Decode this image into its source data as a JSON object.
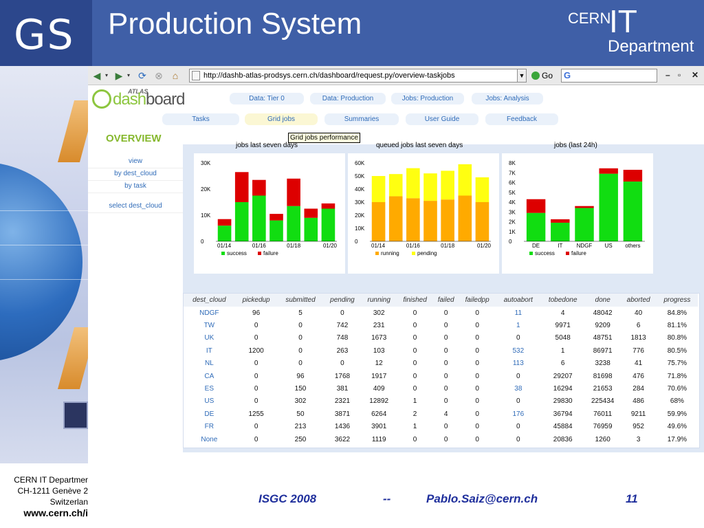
{
  "slide": {
    "title": "Production System",
    "gs_logo": "GS",
    "cern": "CERN",
    "it": "IT",
    "department": "Department",
    "footer_left": [
      "CERN IT Departmer",
      "CH-1211 Genève 2",
      "Switzerlan"
    ],
    "footer_url": "www.cern.ch/i",
    "footer_event": "ISGC 2008",
    "footer_sep": "--",
    "footer_email": "Pablo.Saiz@cern.ch",
    "page_number": "11"
  },
  "browser": {
    "url": "http://dashb-atlas-prodsys.cern.ch/dashboard/request.py/overview-taskjobs",
    "go_label": "Go",
    "search_glyph": "G",
    "window_controls": [
      "–",
      "▫",
      "✕"
    ]
  },
  "dashboard": {
    "logo_atlas": "ATLAS",
    "logo_word_a": "dash",
    "logo_word_b": "board",
    "top_menu": [
      "Data: Tier 0",
      "Data: Production",
      "Jobs: Production",
      "Jobs: Analysis"
    ],
    "sub_menu": [
      "Tasks",
      "Grid jobs",
      "Summaries",
      "User Guide",
      "Feedback"
    ],
    "active_sub_menu": "Grid jobs",
    "overview": "OVERVIEW",
    "sidebar": [
      "view",
      "by dest_cloud",
      "by task",
      "select dest_cloud"
    ],
    "tooltip": "Grid jobs performance"
  },
  "chart_data": [
    {
      "type": "bar",
      "stacked": true,
      "title": "jobs last seven days",
      "categories": [
        "01/14",
        "01/15",
        "01/16",
        "01/17",
        "01/18",
        "01/19",
        "01/20"
      ],
      "tick_labels": [
        "01/14",
        "01/16",
        "01/18",
        "01/20"
      ],
      "ylim": [
        0,
        30000
      ],
      "yticks": [
        "0",
        "10K",
        "20K",
        "30K"
      ],
      "series": [
        {
          "name": "success",
          "color": "#11dd11",
          "values": [
            6000,
            15000,
            17500,
            8000,
            13500,
            9000,
            12500
          ]
        },
        {
          "name": "failure",
          "color": "#dd0000",
          "values": [
            2500,
            11500,
            6000,
            2500,
            10500,
            3500,
            2000
          ]
        }
      ]
    },
    {
      "type": "bar",
      "stacked": true,
      "title": "queued jobs last seven days",
      "categories": [
        "01/14",
        "01/15",
        "01/16",
        "01/17",
        "01/18",
        "01/19",
        "01/20"
      ],
      "tick_labels": [
        "01/14",
        "01/16",
        "01/18",
        "01/20"
      ],
      "ylim": [
        0,
        60000
      ],
      "yticks": [
        "0",
        "10K",
        "20K",
        "30K",
        "40K",
        "50K",
        "60K"
      ],
      "series": [
        {
          "name": "running",
          "color": "#ffaa00",
          "values": [
            30000,
            34500,
            33000,
            31000,
            32000,
            35000,
            30000
          ]
        },
        {
          "name": "pending",
          "color": "#ffff11",
          "values": [
            20000,
            17000,
            23000,
            21000,
            22000,
            24000,
            19000
          ]
        }
      ]
    },
    {
      "type": "bar",
      "stacked": true,
      "title": "jobs (last 24h)",
      "categories": [
        "DE",
        "IT",
        "NDGF",
        "US",
        "others"
      ],
      "tick_labels": [
        "DE",
        "IT",
        "NDGF",
        "US",
        "others"
      ],
      "ylim": [
        0,
        8000
      ],
      "yticks": [
        "0",
        "1K",
        "2K",
        "3K",
        "4K",
        "5K",
        "6K",
        "7K",
        "8K"
      ],
      "series": [
        {
          "name": "success",
          "color": "#11dd11",
          "values": [
            2900,
            1900,
            3400,
            6900,
            6100
          ]
        },
        {
          "name": "failure",
          "color": "#dd0000",
          "values": [
            1400,
            350,
            200,
            550,
            1200
          ]
        }
      ]
    }
  ],
  "table": {
    "columns": [
      "dest_cloud",
      "pickedup",
      "submitted",
      "pending",
      "running",
      "finished",
      "failed",
      "failedpp",
      "autoabort",
      "tobedone",
      "done",
      "aborted",
      "progress"
    ],
    "rows": [
      [
        "NDGF",
        "96",
        "5",
        "0",
        "302",
        "0",
        "0",
        "0",
        "11",
        "4",
        "48042",
        "40",
        "84.8%"
      ],
      [
        "TW",
        "0",
        "0",
        "742",
        "231",
        "0",
        "0",
        "0",
        "1",
        "9971",
        "9209",
        "6",
        "81.1%"
      ],
      [
        "UK",
        "0",
        "0",
        "748",
        "1673",
        "0",
        "0",
        "0",
        "0",
        "5048",
        "48751",
        "1813",
        "80.8%"
      ],
      [
        "IT",
        "1200",
        "0",
        "263",
        "103",
        "0",
        "0",
        "0",
        "532",
        "1",
        "86971",
        "776",
        "80.5%"
      ],
      [
        "NL",
        "0",
        "0",
        "0",
        "12",
        "0",
        "0",
        "0",
        "113",
        "6",
        "3238",
        "41",
        "75.7%"
      ],
      [
        "CA",
        "0",
        "96",
        "1768",
        "1917",
        "0",
        "0",
        "0",
        "0",
        "29207",
        "81698",
        "476",
        "71.8%"
      ],
      [
        "ES",
        "0",
        "150",
        "381",
        "409",
        "0",
        "0",
        "0",
        "38",
        "16294",
        "21653",
        "284",
        "70.6%"
      ],
      [
        "US",
        "0",
        "302",
        "2321",
        "12892",
        "1",
        "0",
        "0",
        "0",
        "29830",
        "225434",
        "486",
        "68%"
      ],
      [
        "DE",
        "1255",
        "50",
        "3871",
        "6264",
        "2",
        "4",
        "0",
        "176",
        "36794",
        "76011",
        "9211",
        "59.9%"
      ],
      [
        "FR",
        "0",
        "213",
        "1436",
        "3901",
        "1",
        "0",
        "0",
        "0",
        "45884",
        "76959",
        "952",
        "49.6%"
      ],
      [
        "None",
        "0",
        "250",
        "3622",
        "1119",
        "0",
        "0",
        "0",
        "0",
        "20836",
        "1260",
        "3",
        "17.9%"
      ]
    ]
  }
}
